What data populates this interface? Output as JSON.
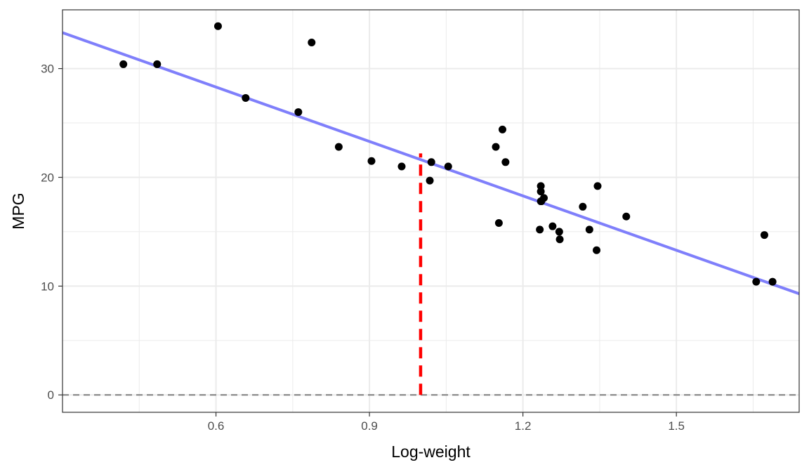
{
  "chart_data": {
    "type": "scatter",
    "title": "",
    "xlabel": "Log-weight",
    "ylabel": "MPG",
    "xlim": [
      0.3,
      1.74
    ],
    "ylim": [
      -1.6,
      35.4
    ],
    "x_ticks": [
      0.6,
      0.9,
      1.2,
      1.5
    ],
    "x_tick_labels": [
      "0.6",
      "0.9",
      "1.2",
      "1.5"
    ],
    "x_minor_ticks": [
      0.45,
      0.75,
      1.05,
      1.35,
      1.65
    ],
    "y_ticks": [
      0,
      10,
      20,
      30
    ],
    "y_tick_labels": [
      "0",
      "10",
      "20",
      "30"
    ],
    "y_minor_ticks": [
      5,
      15,
      25
    ],
    "grid": true,
    "points": {
      "color": "#000000",
      "x": [
        0.419,
        0.485,
        0.604,
        0.658,
        0.761,
        0.787,
        0.84,
        0.904,
        0.963,
        1.018,
        1.021,
        1.054,
        1.147,
        1.153,
        1.16,
        1.166,
        1.233,
        1.235,
        1.235,
        1.235,
        1.236,
        1.241,
        1.258,
        1.271,
        1.272,
        1.317,
        1.33,
        1.344,
        1.346,
        1.402,
        1.656,
        1.672,
        1.688
      ],
      "y": [
        30.4,
        30.4,
        33.9,
        27.3,
        26.0,
        32.4,
        22.8,
        21.5,
        21.0,
        19.7,
        21.4,
        21.0,
        22.8,
        15.8,
        24.4,
        21.4,
        15.2,
        19.2,
        18.7,
        17.8,
        17.8,
        18.1,
        15.5,
        15.0,
        14.3,
        17.3,
        15.2,
        13.3,
        19.2,
        16.4,
        10.4,
        14.7,
        10.4
      ]
    },
    "fit_line": {
      "color": "#7f7ffb",
      "x": [
        0.3,
        1.74
      ],
      "y": [
        33.3,
        9.3
      ]
    },
    "reference_hline": {
      "y": 0,
      "color": "#808080",
      "style": "dashed"
    },
    "marker_segment": {
      "x": 1.0,
      "y_from": 0,
      "y_to": 22.2,
      "color": "#ff0000",
      "style": "dashed"
    }
  }
}
